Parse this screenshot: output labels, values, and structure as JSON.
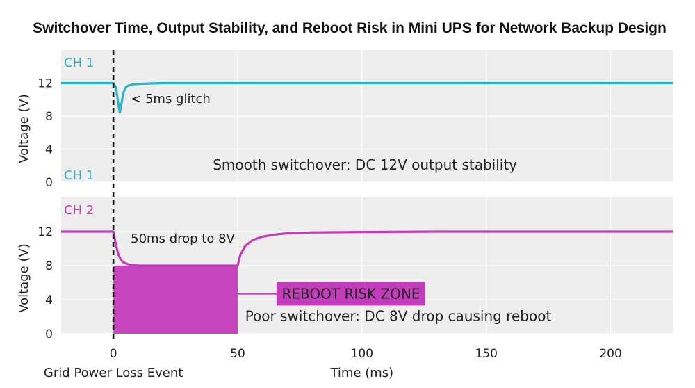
{
  "chart_data": {
    "title": "Switchover Time, Output Stability, and Reboot Risk in Mini UPS for Network Backup Design",
    "xlabel": "Time (ms)",
    "event_label": "Grid Power Loss Event",
    "x_ticks": [
      0,
      50,
      100,
      150,
      200
    ],
    "xlim": [
      -21,
      225
    ],
    "panels": [
      {
        "type": "line",
        "channel_label": "CH 1",
        "channel_label_bottom": "CH 1",
        "ylabel": "Voltage (V)",
        "ylim": [
          0,
          16
        ],
        "y_ticks": [
          0,
          4,
          8,
          12
        ],
        "color": "#2bb5c8",
        "series": [
          {
            "x": [
              -21,
              0,
              1,
              2,
              2.6,
              3.2,
              4,
              5,
              6,
              8,
              10,
              14,
              20,
              40,
              225
            ],
            "y": [
              12,
              12,
              11.5,
              9.5,
              8.4,
              9.4,
              10.8,
              11.5,
              11.7,
              11.85,
              11.9,
              11.95,
              12,
              12,
              12
            ]
          }
        ],
        "annotations": [
          {
            "text": "< 5ms glitch",
            "x": 7,
            "y": 9.6
          },
          {
            "text": "Smooth switchover: DC 12V output stability",
            "x": 40,
            "y": 1.5
          }
        ]
      },
      {
        "type": "line",
        "channel_label": "CH 2",
        "ylabel": "Voltage (V)",
        "ylim": [
          0,
          16
        ],
        "y_ticks": [
          0,
          4,
          8,
          12
        ],
        "color": "#c43bbc",
        "series": [
          {
            "x": [
              -21,
              0,
              1,
              2,
              3,
              4,
              6,
              8,
              10,
              50,
              51,
              53,
              56,
              60,
              65,
              70,
              80,
              100,
              130,
              225
            ],
            "y": [
              12,
              12,
              10.5,
              9.3,
              8.7,
              8.4,
              8.15,
              8.05,
              8,
              8,
              9.2,
              10.3,
              11,
              11.4,
              11.65,
              11.8,
              11.9,
              11.95,
              12,
              12
            ]
          }
        ],
        "zone": {
          "x_start": 0,
          "x_end": 50,
          "y_top": 8,
          "color": "#c43bbc",
          "label": "REBOOT RISK ZONE",
          "label_bg": "#c43bbc"
        },
        "annotations": [
          {
            "text": "50ms drop to 8V",
            "x": 7,
            "y": 10.7
          },
          {
            "text": "Poor switchover: DC 8V drop causing reboot",
            "x": 53,
            "y": 1.5
          }
        ]
      }
    ]
  }
}
